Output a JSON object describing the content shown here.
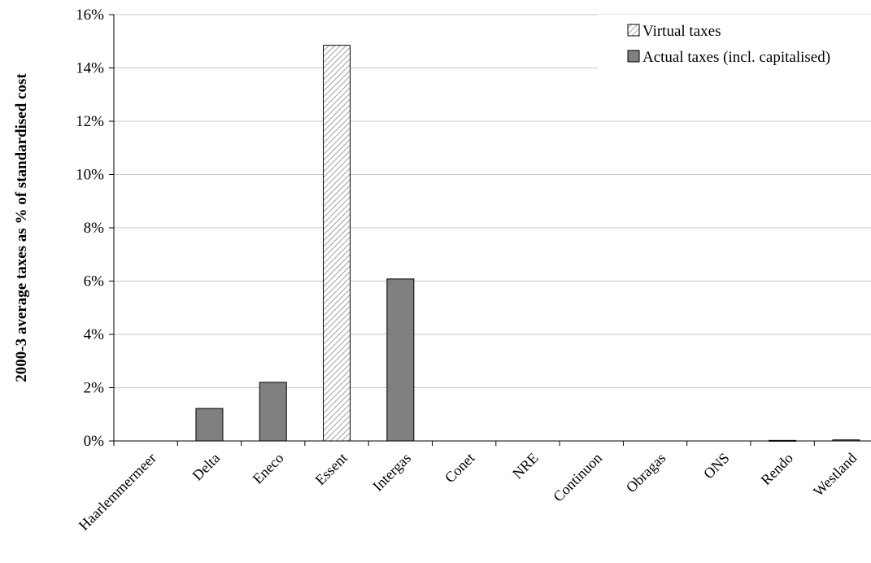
{
  "chart_data": {
    "type": "bar",
    "ylabel": "2000-3 average taxes as % of standardised cost",
    "xlabel": "",
    "ylim": [
      0,
      16
    ],
    "ytick_labels": [
      "0%",
      "2%",
      "4%",
      "6%",
      "8%",
      "10%",
      "12%",
      "14%",
      "16%"
    ],
    "grid": true,
    "legend_position": "top-right",
    "categories": [
      "Haarlemmermeer",
      "Delta",
      "Eneco",
      "Essent",
      "Intergas",
      "Conet",
      "NRE",
      "Continuon",
      "Obragas",
      "ONS",
      "Rendo",
      "Westland"
    ],
    "series": [
      {
        "name": "Virtual taxes",
        "pattern": "hatched",
        "color": "#ffffff",
        "values": [
          0,
          0,
          0,
          14.85,
          0,
          0,
          0,
          0,
          0,
          0,
          0,
          0
        ]
      },
      {
        "name": "Actual taxes (incl. capitalised)",
        "pattern": "solid",
        "color": "#808080",
        "values": [
          0,
          1.22,
          2.2,
          0,
          6.08,
          0,
          0,
          0,
          0,
          0,
          0.02,
          0.04
        ]
      }
    ]
  }
}
